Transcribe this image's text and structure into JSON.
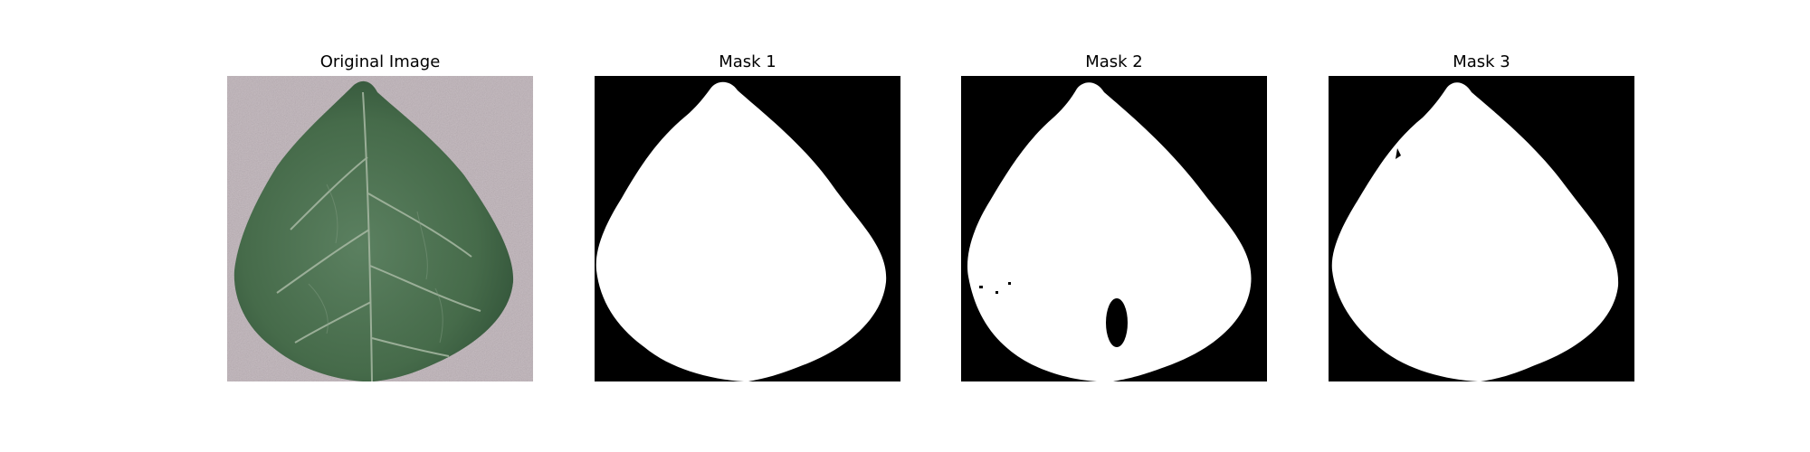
{
  "panels": [
    {
      "title": "Original Image",
      "kind": "photo",
      "icon": "leaf-photo"
    },
    {
      "title": "Mask 1",
      "kind": "mask",
      "icon": "leaf-mask"
    },
    {
      "title": "Mask 2",
      "kind": "mask",
      "icon": "leaf-mask-with-hole"
    },
    {
      "title": "Mask 3",
      "kind": "mask",
      "icon": "leaf-mask"
    }
  ],
  "colors": {
    "background_photo": "#bdb1b7",
    "leaf": "#4a6f4d",
    "leaf_dark": "#2f5234",
    "vein": "#a8b9a4",
    "mask_bg": "#000000",
    "mask_fg": "#ffffff"
  }
}
